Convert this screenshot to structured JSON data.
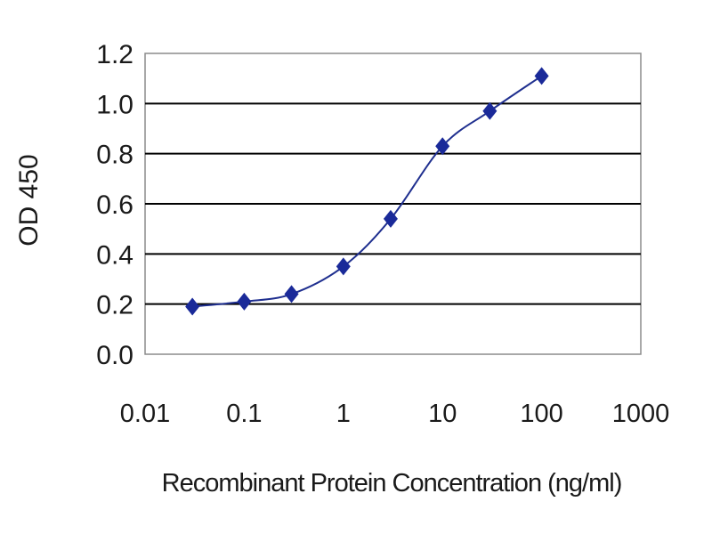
{
  "chart_data": {
    "type": "line",
    "title": "",
    "xlabel": "Recombinant Protein Concentration (ng/ml)",
    "ylabel": "OD 450",
    "x_scale": "log",
    "xlim": [
      0.01,
      1000
    ],
    "ylim": [
      0.0,
      1.2
    ],
    "x_ticks": [
      "0.01",
      "0.1",
      "1",
      "10",
      "100",
      "1000"
    ],
    "y_ticks": [
      "0.0",
      "0.2",
      "0.4",
      "0.6",
      "0.8",
      "1.0",
      "1.2"
    ],
    "grid": "horizontal",
    "legend": "none",
    "line_color": "#1f2f8f",
    "marker_color": "#1a2a99",
    "marker": "diamond",
    "series": [
      {
        "x": [
          0.03,
          0.1,
          0.3,
          1,
          3,
          10,
          30,
          100
        ],
        "values": [
          0.19,
          0.21,
          0.24,
          0.35,
          0.54,
          0.83,
          0.97,
          1.11
        ]
      }
    ]
  }
}
